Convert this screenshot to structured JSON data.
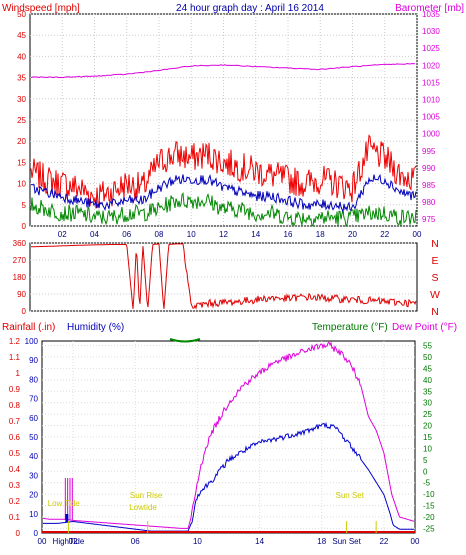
{
  "header": {
    "left_label": "Windspeed [mph]",
    "center_label": "24 hour graph day : April 16 2014",
    "right_label": "Barometer [mb]"
  },
  "colors": {
    "gust": "#ee0000",
    "avg_wind": "#0000bb",
    "min_wind": "#008800",
    "barometer": "#dd00dd",
    "wind_dir": "#dd0000",
    "humidity": "#0000cc",
    "temperature": "#dd00dd",
    "dew_point": "#0000cc",
    "rain": "#dd0000",
    "temp_axis": "#007700",
    "note": "#cccc00"
  },
  "chart_data": [
    {
      "type": "line",
      "x_ticks": [
        "02",
        "04",
        "06",
        "08",
        "10",
        "12",
        "14",
        "16",
        "18",
        "20",
        "22",
        "00"
      ],
      "left_axis": {
        "label": "Windspeed [mph]",
        "ticks": [
          0,
          5,
          10,
          15,
          20,
          25,
          30,
          35,
          40,
          45,
          50
        ],
        "ylim": [
          0,
          50
        ]
      },
      "right_axis": {
        "label": "Barometer [mb]",
        "ticks": [
          975,
          980,
          985,
          990,
          995,
          1000,
          1005,
          1010,
          1015,
          1020,
          1025,
          1030,
          1035
        ],
        "ylim": [
          973,
          1035
        ]
      },
      "series": [
        {
          "key": "gust",
          "axis": "left",
          "x": [
            0,
            1,
            2,
            3,
            4,
            5,
            6,
            7,
            8,
            9,
            10,
            11,
            12,
            13,
            14,
            15,
            16,
            17,
            18,
            19,
            20,
            21,
            22,
            23,
            24
          ],
          "values": [
            13,
            11,
            10,
            9,
            7,
            8,
            10,
            9,
            15,
            17,
            16,
            17,
            15,
            14,
            13,
            12,
            11,
            10,
            11,
            10,
            9,
            18,
            16,
            12,
            11
          ]
        },
        {
          "key": "avg_wind",
          "axis": "left",
          "x": [
            0,
            1,
            2,
            3,
            4,
            5,
            6,
            7,
            8,
            9,
            10,
            11,
            12,
            13,
            14,
            15,
            16,
            17,
            18,
            19,
            20,
            21,
            22,
            23,
            24
          ],
          "values": [
            9,
            8,
            7,
            6,
            5,
            5,
            6,
            6,
            9,
            11,
            11,
            11,
            9,
            8,
            7,
            7,
            6,
            5,
            5,
            5,
            4,
            11,
            11,
            8,
            7
          ]
        },
        {
          "key": "min_wind",
          "axis": "left",
          "x": [
            0,
            1,
            2,
            3,
            4,
            5,
            6,
            7,
            8,
            9,
            10,
            11,
            12,
            13,
            14,
            15,
            16,
            17,
            18,
            19,
            20,
            21,
            22,
            23,
            24
          ],
          "values": [
            5,
            4,
            3,
            3,
            2,
            2,
            3,
            3,
            4,
            6,
            6,
            6,
            4,
            4,
            3,
            3,
            2,
            2,
            2,
            2,
            2,
            3,
            3,
            2,
            2
          ]
        },
        {
          "key": "barometer",
          "axis": "right",
          "x": [
            0,
            2,
            4,
            6,
            8,
            10,
            12,
            14,
            16,
            18,
            20,
            22,
            24
          ],
          "values": [
            1016.5,
            1016.5,
            1016.8,
            1017.4,
            1018.5,
            1019.8,
            1020.1,
            1019.6,
            1019.2,
            1018.8,
            1019.6,
            1020.2,
            1020.5
          ]
        }
      ]
    },
    {
      "type": "line",
      "left_axis": {
        "ticks": [
          0,
          90,
          180,
          270,
          360
        ],
        "ylim": [
          0,
          360
        ]
      },
      "right_axis": {
        "ticks": [
          "N",
          "W",
          "S",
          "E",
          "N"
        ]
      },
      "series": [
        {
          "key": "wind_dir",
          "x": [
            0,
            1,
            2,
            3,
            4,
            5,
            6,
            6.4,
            6.6,
            6.8,
            7,
            7.3,
            7.6,
            8,
            8.3,
            8.6,
            9,
            9.5,
            10,
            11,
            12,
            13,
            14,
            15,
            16,
            17,
            18,
            19,
            20,
            21,
            22,
            23,
            24
          ],
          "values": [
            340,
            342,
            345,
            348,
            350,
            352,
            352,
            0,
            352,
            0,
            352,
            0,
            352,
            355,
            0,
            352,
            355,
            355,
            20,
            40,
            45,
            50,
            60,
            70,
            65,
            75,
            70,
            65,
            60,
            55,
            50,
            45,
            40
          ]
        }
      ]
    },
    {
      "type": "line",
      "rain_axis": {
        "label": "Rainfall (.in)",
        "ticks": [
          "0",
          "0.1",
          "0.2",
          "0.3",
          "0.4",
          "0.5",
          "0.6",
          "0.7",
          "0.8",
          "0.9",
          "1",
          "1.1",
          "1.2"
        ],
        "ylim": [
          0,
          1.2
        ]
      },
      "humidity_axis": {
        "label": "Humidity (%)",
        "ticks": [
          0,
          10,
          20,
          30,
          40,
          50,
          60,
          70,
          80,
          90,
          100
        ],
        "ylim": [
          0,
          100
        ]
      },
      "temp_axis": {
        "label": "Temperature (°F)",
        "ticks": [
          -25,
          -20,
          -15,
          -10,
          -5,
          0,
          5,
          10,
          15,
          20,
          25,
          30,
          35,
          40,
          45,
          50,
          55
        ],
        "ylim": [
          -27,
          57
        ]
      },
      "dew_label": "Dew Point (°F)",
      "x_ticks": [
        "02",
        "06",
        "10",
        "14",
        "18",
        "22"
      ],
      "x_notes": [
        "HighTide",
        "Sun Rise",
        "Sun Set",
        "LowTide"
      ],
      "annotations": [
        "Low Tide",
        "Sun Rise",
        "Lowtide",
        "Sun Set"
      ],
      "series": [
        {
          "key": "temperature",
          "axis": "temp",
          "x": [
            0,
            0.5,
            1,
            1.5,
            2,
            3,
            4,
            5,
            6,
            7,
            8,
            9,
            9.4,
            9.6,
            10,
            10.5,
            11,
            12,
            13,
            14,
            15,
            16,
            17,
            18,
            18.5,
            19,
            19.5,
            20,
            20.5,
            21,
            21.5,
            22,
            22.5,
            23,
            24
          ],
          "values": [
            -20.5,
            -21,
            -21,
            -21,
            -21.5,
            -22,
            -22.5,
            -23,
            -23.5,
            -24,
            -24.5,
            -25,
            -25,
            -20,
            -5,
            10,
            18,
            30,
            38,
            43,
            48,
            50,
            53,
            55,
            55,
            53,
            50,
            45,
            38,
            24,
            18,
            8,
            -10,
            -20,
            -22
          ]
        },
        {
          "key": "humidity",
          "axis": "humidity",
          "x": [
            0,
            1,
            2,
            3,
            4,
            5,
            6,
            7,
            8,
            9,
            9.4,
            9.6,
            10,
            11,
            12,
            13,
            14,
            15,
            16,
            17,
            18,
            18.5,
            19,
            20,
            21,
            22,
            22.4,
            22.6,
            23,
            24
          ],
          "values": [
            5,
            5,
            6,
            5,
            4,
            3,
            2,
            1,
            1,
            1,
            1,
            5,
            20,
            28,
            38,
            43,
            47,
            49,
            51,
            53,
            56,
            56,
            54,
            44,
            33,
            20,
            10,
            4,
            2,
            2
          ]
        },
        {
          "key": "rain",
          "axis": "rain",
          "x": [
            0,
            24
          ],
          "values": [
            0,
            0
          ]
        }
      ]
    }
  ]
}
